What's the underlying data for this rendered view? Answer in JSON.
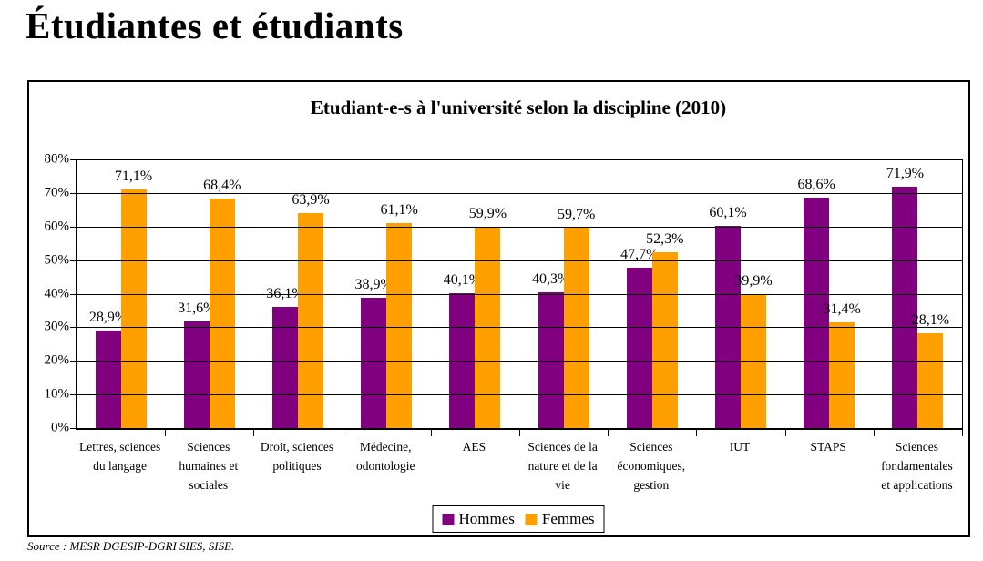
{
  "page_title": "Étudiantes et étudiants",
  "source_note": "Source : MESR DGESIP-DGRI SIES, SISE.",
  "colors": {
    "hommes": "#800080",
    "femmes": "#FFA000",
    "grid": "#000000"
  },
  "chart_data": {
    "type": "bar",
    "title": "Etudiant-e-s à l'université selon la discipline (2010)",
    "categories": [
      "Lettres, sciences du langage",
      "Sciences humaines et sociales",
      "Droit, sciences politiques",
      "Médecine, odontologie",
      "AES",
      "Sciences de la nature et de la vie",
      "Sciences économiques, gestion",
      "IUT",
      "STAPS",
      "Sciences fondamentales et applications"
    ],
    "series": [
      {
        "name": "Hommes",
        "color_key": "hommes",
        "values": [
          28.9,
          31.6,
          36.1,
          38.9,
          40.1,
          40.3,
          47.7,
          60.1,
          68.6,
          71.9
        ],
        "value_labels": [
          "28,9%",
          "31,6%",
          "36,1%",
          "38,9%",
          "40,1%",
          "40,3%",
          "47,7%",
          "60,1%",
          "68,6%",
          "71,9%"
        ]
      },
      {
        "name": "Femmes",
        "color_key": "femmes",
        "values": [
          71.1,
          68.4,
          63.9,
          61.1,
          59.9,
          59.7,
          52.3,
          39.9,
          31.4,
          28.1
        ],
        "value_labels": [
          "71,1%",
          "68,4%",
          "63,9%",
          "61,1%",
          "59,9%",
          "59,7%",
          "52,3%",
          "39,9%",
          "31,4%",
          "28,1%"
        ]
      }
    ],
    "ylim": [
      0,
      80
    ],
    "ytick_step": 10,
    "ytick_labels": [
      "0%",
      "10%",
      "20%",
      "30%",
      "40%",
      "50%",
      "60%",
      "70%",
      "80%"
    ],
    "grid": true,
    "legend_position": "bottom"
  }
}
